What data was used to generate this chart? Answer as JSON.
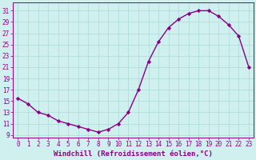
{
  "x": [
    0,
    1,
    2,
    3,
    4,
    5,
    6,
    7,
    8,
    9,
    10,
    11,
    12,
    13,
    14,
    15,
    16,
    17,
    18,
    19,
    20,
    21,
    22,
    23
  ],
  "y": [
    15.5,
    14.5,
    13.0,
    12.5,
    11.5,
    11.0,
    10.5,
    10.0,
    9.5,
    10.0,
    11.0,
    13.0,
    17.0,
    22.0,
    25.5,
    28.0,
    29.5,
    30.5,
    31.0,
    31.0,
    30.0,
    28.5,
    26.5,
    21.0
  ],
  "line_color": "#880088",
  "marker": "D",
  "markersize": 2.2,
  "background_color": "#cff0ee",
  "grid_color": "#b0ddd8",
  "xlabel": "Windchill (Refroidissement éolien,°C)",
  "xlim": [
    -0.5,
    23.5
  ],
  "ylim": [
    8.5,
    32.5
  ],
  "yticks": [
    9,
    11,
    13,
    15,
    17,
    19,
    21,
    23,
    25,
    27,
    29,
    31
  ],
  "xticks": [
    0,
    1,
    2,
    3,
    4,
    5,
    6,
    7,
    8,
    9,
    10,
    11,
    12,
    13,
    14,
    15,
    16,
    17,
    18,
    19,
    20,
    21,
    22,
    23
  ],
  "tick_color": "#880088",
  "label_fontsize": 6.5,
  "tick_fontsize": 5.5,
  "linewidth": 1.0
}
